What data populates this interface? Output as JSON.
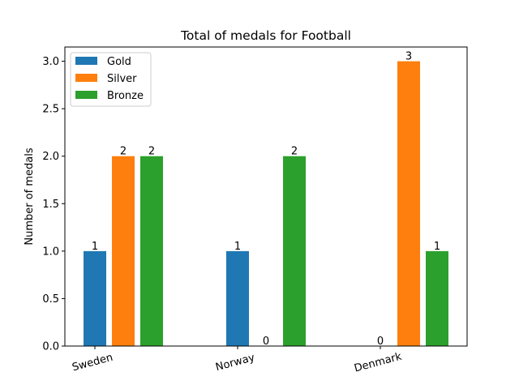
{
  "chart_data": {
    "type": "bar",
    "title": "Total of  medals for Football",
    "xlabel": "",
    "ylabel": "Number of medals",
    "categories": [
      "Sweden",
      "Norway",
      "Denmark"
    ],
    "series": [
      {
        "name": "Gold",
        "values": [
          1,
          1,
          0
        ],
        "color": "#1f77b4"
      },
      {
        "name": "Silver",
        "values": [
          2,
          0,
          3
        ],
        "color": "#ff7f0e"
      },
      {
        "name": "Bronze",
        "values": [
          2,
          2,
          1
        ],
        "color": "#2ca02c"
      }
    ],
    "ylim": [
      0,
      3.15
    ],
    "yticks": [
      "0.0",
      "0.5",
      "1.0",
      "1.5",
      "2.0",
      "2.5",
      "3.0"
    ],
    "ytick_values": [
      0,
      0.5,
      1.0,
      1.5,
      2.0,
      2.5,
      3.0
    ],
    "legend_position": "top-left",
    "grid": false,
    "data_labels": true
  }
}
